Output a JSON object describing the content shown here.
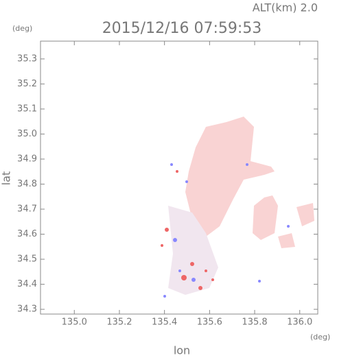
{
  "chart_data": {
    "type": "map",
    "title": "2015/12/16 07:59:53",
    "annotation": "ALT(km) 2.0",
    "y_unit": "(deg)",
    "x_unit": "(deg)",
    "x_label": "lon",
    "y_label": "lat",
    "xlim": [
      134.85,
      136.08
    ],
    "ylim": [
      34.281,
      35.371
    ],
    "xticks": [
      {
        "value": 135,
        "label": "135.0"
      },
      135.2,
      135.4,
      135.6,
      135.8,
      {
        "value": 136,
        "label": "136.0"
      }
    ],
    "yticks": [
      34.3,
      34.4,
      34.5,
      34.6,
      34.7,
      34.8,
      34.9,
      {
        "value": 35,
        "label": "35.0"
      },
      35.1,
      35.2,
      35.3
    ]
  }
}
